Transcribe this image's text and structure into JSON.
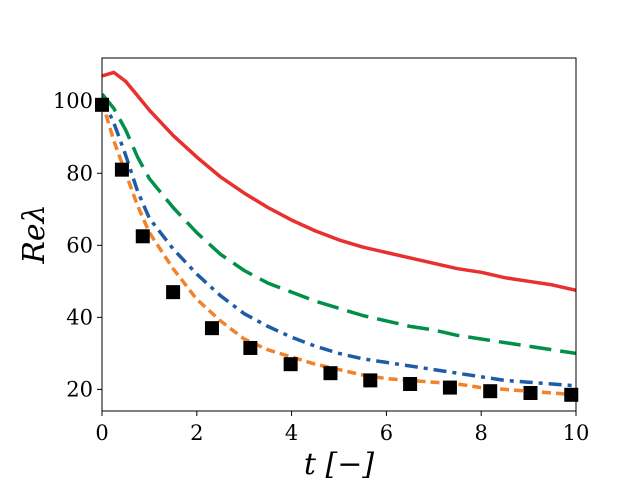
{
  "chart_data": {
    "type": "line",
    "title": "",
    "xlabel": "t [−]",
    "ylabel": "Reλ",
    "xlim": [
      0,
      10
    ],
    "ylim": [
      14,
      112
    ],
    "xticks": [
      0,
      2,
      4,
      6,
      8,
      10
    ],
    "yticks": [
      20,
      40,
      60,
      80,
      100
    ],
    "grid": false,
    "legend": "none",
    "series": [
      {
        "color": "#e8302e",
        "dash": "solid",
        "x": [
          0,
          0.25,
          0.5,
          0.75,
          1,
          1.5,
          2,
          2.5,
          3,
          3.5,
          4,
          4.5,
          5,
          5.5,
          6,
          6.5,
          7,
          7.5,
          8,
          8.5,
          9,
          9.5,
          10
        ],
        "y": [
          107,
          108,
          105.5,
          101.5,
          97.5,
          90.5,
          84.5,
          79,
          74.5,
          70.5,
          67,
          64,
          61.5,
          59.5,
          58,
          56.5,
          55,
          53.5,
          52.5,
          51,
          50,
          49,
          47.5
        ]
      },
      {
        "color": "#00904a",
        "dash": "long-dash",
        "x": [
          0,
          0.25,
          0.5,
          0.75,
          1,
          1.5,
          2,
          2.5,
          3,
          3.5,
          4,
          4.5,
          5,
          5.5,
          6,
          6.5,
          7,
          7.5,
          8,
          8.5,
          9,
          9.5,
          10
        ],
        "y": [
          102,
          98,
          92,
          84.5,
          78.5,
          70.5,
          63.5,
          57.5,
          53,
          49.5,
          47,
          44.5,
          42.5,
          40.5,
          39,
          37.5,
          36.5,
          35,
          34,
          33,
          32,
          31,
          30
        ]
      },
      {
        "color": "#1e5ba8",
        "dash": "dash-dot",
        "x": [
          0,
          0.25,
          0.5,
          0.75,
          1,
          1.5,
          2,
          2.5,
          3,
          3.5,
          4,
          4.5,
          5,
          5.5,
          6,
          6.5,
          7,
          7.5,
          8,
          8.5,
          9,
          9.5,
          10
        ],
        "y": [
          101,
          94,
          85,
          75,
          67.5,
          59,
          52,
          46,
          41,
          37.5,
          34.5,
          32,
          30,
          28.5,
          27.5,
          26.5,
          25.5,
          24.5,
          23.5,
          22.5,
          22,
          21.5,
          21
        ]
      },
      {
        "color": "#f2832b",
        "dash": "short-dash",
        "x": [
          0,
          0.25,
          0.5,
          0.75,
          1,
          1.5,
          2,
          2.5,
          3,
          3.5,
          4,
          4.5,
          5,
          5.5,
          6,
          6.5,
          7,
          7.5,
          8,
          8.5,
          9,
          9.5,
          10
        ],
        "y": [
          100,
          89,
          80,
          71,
          63.5,
          53.5,
          45,
          39,
          34,
          31,
          29,
          27,
          25.5,
          24,
          23,
          22.5,
          22,
          21.5,
          20.5,
          20,
          19.5,
          19,
          18.5
        ]
      },
      {
        "color": "#000000",
        "marker": "square",
        "x": [
          0,
          0.42,
          0.86,
          1.5,
          2.32,
          3.13,
          3.98,
          4.82,
          5.66,
          6.5,
          7.34,
          8.19,
          9.04,
          9.9
        ],
        "y": [
          99,
          81,
          62.5,
          47,
          37,
          31.5,
          27,
          24.5,
          22.5,
          21.5,
          20.5,
          19.5,
          19,
          18.5
        ]
      }
    ]
  }
}
